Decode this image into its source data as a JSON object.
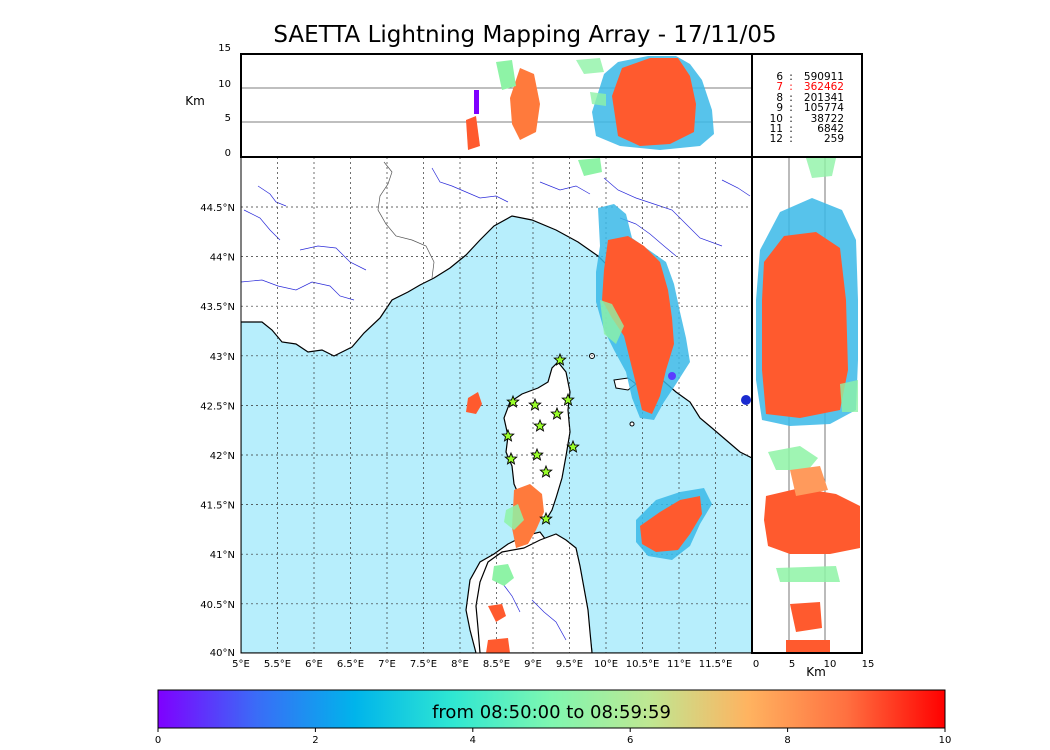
{
  "title": "SAETTA Lightning Mapping Array - 17/11/05",
  "altitude_panel": {
    "axis_label": "Km",
    "ticks": [
      "15",
      "10",
      "5",
      "0"
    ]
  },
  "map": {
    "lon_ticks": [
      "5°E",
      "5.5°E",
      "6°E",
      "6.5°E",
      "7°E",
      "7.5°E",
      "8°E",
      "8.5°E",
      "9°E",
      "9.5°E",
      "10°E",
      "10.5°E",
      "11°E",
      "11.5°E"
    ],
    "lat_ticks": [
      "44.5°N",
      "44°N",
      "43.5°N",
      "43°N",
      "42.5°N",
      "42°N",
      "41.5°N",
      "41°N",
      "40.5°N",
      "40°N"
    ],
    "sea_color": "#b7eefc",
    "land_color": "#ffffff"
  },
  "side_panel": {
    "axis_label": "Km",
    "ticks": [
      "0",
      "5",
      "10",
      "15"
    ]
  },
  "legend": [
    {
      "key": "6",
      "value": "590911",
      "color": "#000000"
    },
    {
      "key": "7",
      "value": "362462",
      "color": "#ff0000"
    },
    {
      "key": "8",
      "value": "201341",
      "color": "#000000"
    },
    {
      "key": "9",
      "value": "105774",
      "color": "#000000"
    },
    {
      "key": "10",
      "value": "38722",
      "color": "#000000"
    },
    {
      "key": "11",
      "value": "6842",
      "color": "#000000"
    },
    {
      "key": "12",
      "value": "259",
      "color": "#000000"
    }
  ],
  "colorbar": {
    "label": "from 08:50:00 to 08:59:59",
    "ticks": [
      "0",
      "2",
      "4",
      "6",
      "8",
      "10"
    ],
    "stops": [
      "#7f00ff",
      "#3a6cf7",
      "#00b4eb",
      "#2fe7d2",
      "#7ff7b0",
      "#bfe792",
      "#ffb360",
      "#ff7040",
      "#ff0000"
    ]
  }
}
